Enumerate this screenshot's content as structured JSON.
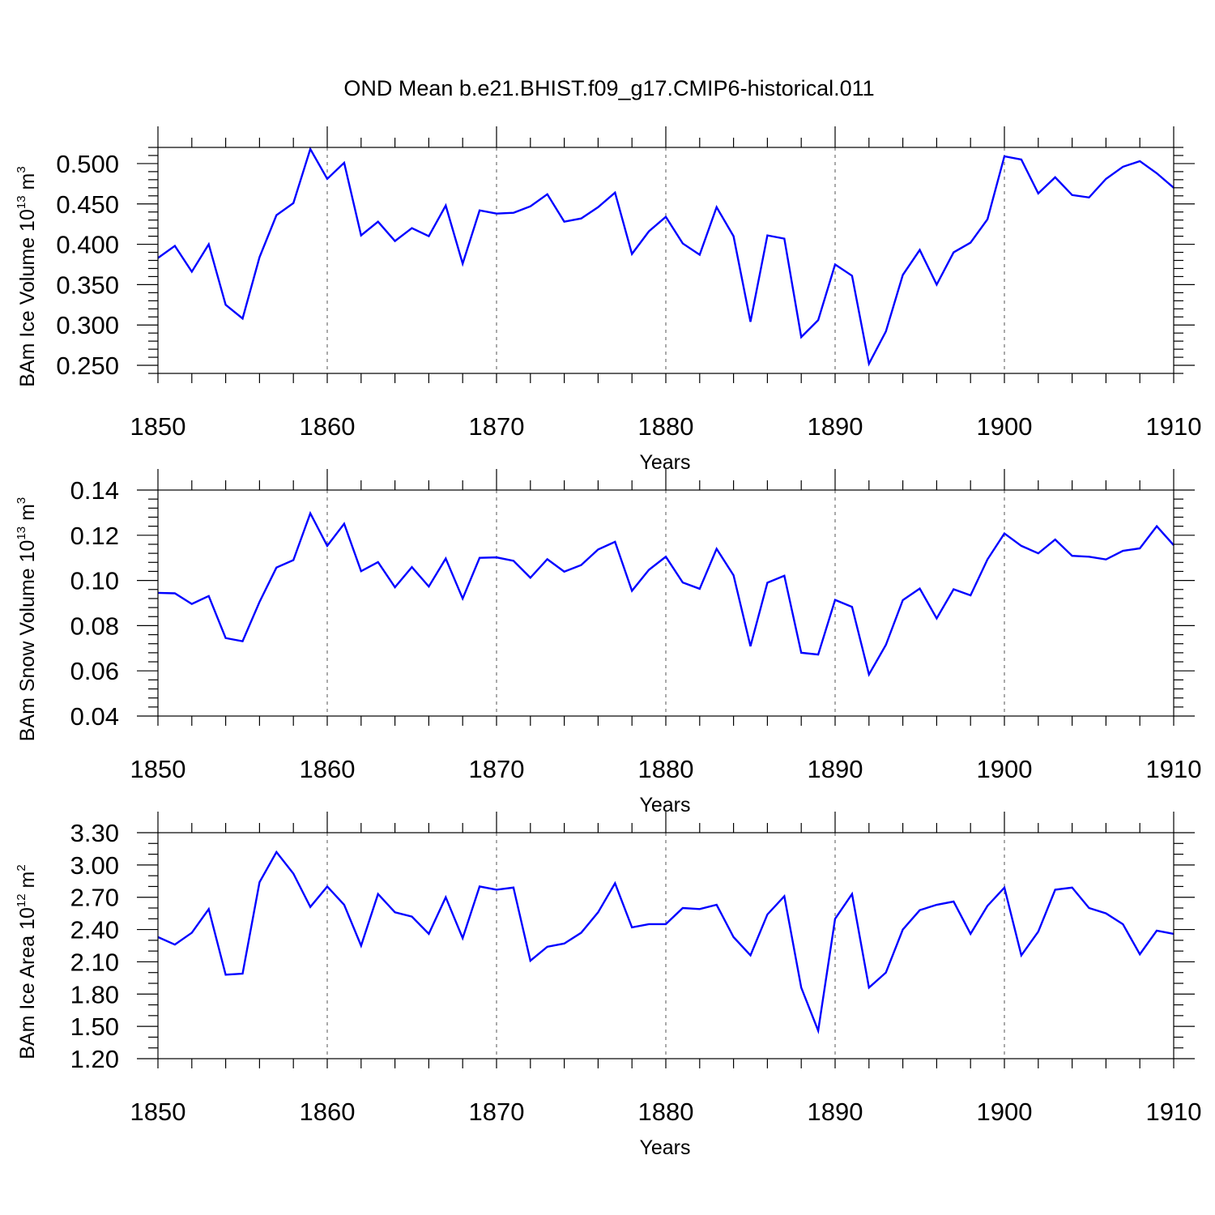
{
  "title": "OND Mean b.e21.BHIST.f09_g17.CMIP6-historical.011",
  "chart_data": [
    {
      "type": "line",
      "name": "ice-volume",
      "ylabel_base": "BAm Ice Volume 10",
      "ylabel_exp": "13",
      "ylabel_unit": " m",
      "ylabel_unit_exp": "3",
      "xlabel": "Years",
      "xlim": [
        1850,
        1910
      ],
      "ylim": [
        0.24,
        0.52
      ],
      "x_ticks": [
        "1850",
        "1860",
        "1870",
        "1880",
        "1890",
        "1900",
        "1910"
      ],
      "y_ticks": [
        "0.250",
        "0.300",
        "0.350",
        "0.400",
        "0.450",
        "0.500"
      ],
      "y_tick_values": [
        0.25,
        0.3,
        0.35,
        0.4,
        0.45,
        0.5
      ],
      "y_minor_step": 0.01,
      "color": "#0000ff",
      "x": [
        1850,
        1851,
        1852,
        1853,
        1854,
        1855,
        1856,
        1857,
        1858,
        1859,
        1860,
        1861,
        1862,
        1863,
        1864,
        1865,
        1866,
        1867,
        1868,
        1869,
        1870,
        1871,
        1872,
        1873,
        1874,
        1875,
        1876,
        1877,
        1878,
        1879,
        1880,
        1881,
        1882,
        1883,
        1884,
        1885,
        1886,
        1887,
        1888,
        1889,
        1890,
        1891,
        1892,
        1893,
        1894,
        1895,
        1896,
        1897,
        1898,
        1899,
        1900,
        1901,
        1902,
        1903,
        1904,
        1905,
        1906,
        1907,
        1908,
        1909,
        1910
      ],
      "values": [
        0.383,
        0.398,
        0.366,
        0.4,
        0.325,
        0.308,
        0.384,
        0.436,
        0.451,
        0.518,
        0.481,
        0.501,
        0.411,
        0.428,
        0.404,
        0.42,
        0.41,
        0.448,
        0.376,
        0.442,
        0.438,
        0.439,
        0.447,
        0.462,
        0.428,
        0.432,
        0.446,
        0.464,
        0.388,
        0.416,
        0.434,
        0.401,
        0.387,
        0.446,
        0.41,
        0.304,
        0.411,
        0.407,
        0.285,
        0.306,
        0.375,
        0.361,
        0.252,
        0.292,
        0.362,
        0.393,
        0.35,
        0.39,
        0.402,
        0.431,
        0.509,
        0.505,
        0.463,
        0.483,
        0.461,
        0.458,
        0.481,
        0.496,
        0.503,
        0.488,
        0.47
      ]
    },
    {
      "type": "line",
      "name": "snow-volume",
      "ylabel_base": "BAm Snow Volume 10",
      "ylabel_exp": "13",
      "ylabel_unit": " m",
      "ylabel_unit_exp": "3",
      "xlabel": "Years",
      "xlim": [
        1850,
        1910
      ],
      "ylim": [
        0.04,
        0.14
      ],
      "x_ticks": [
        "1850",
        "1860",
        "1870",
        "1880",
        "1890",
        "1900",
        "1910"
      ],
      "y_ticks": [
        "0.04",
        "0.06",
        "0.08",
        "0.10",
        "0.12",
        "0.14"
      ],
      "y_tick_values": [
        0.04,
        0.06,
        0.08,
        0.1,
        0.12,
        0.14
      ],
      "y_minor_step": 0.004,
      "color": "#0000ff",
      "x": [
        1850,
        1851,
        1852,
        1853,
        1854,
        1855,
        1856,
        1857,
        1858,
        1859,
        1860,
        1861,
        1862,
        1863,
        1864,
        1865,
        1866,
        1867,
        1868,
        1869,
        1870,
        1871,
        1872,
        1873,
        1874,
        1875,
        1876,
        1877,
        1878,
        1879,
        1880,
        1881,
        1882,
        1883,
        1884,
        1885,
        1886,
        1887,
        1888,
        1889,
        1890,
        1891,
        1892,
        1893,
        1894,
        1895,
        1896,
        1897,
        1898,
        1899,
        1900,
        1901,
        1902,
        1903,
        1904,
        1905,
        1906,
        1907,
        1908,
        1909,
        1910
      ],
      "values": [
        0.0945,
        0.0943,
        0.0896,
        0.0931,
        0.0745,
        0.0731,
        0.0905,
        0.1057,
        0.109,
        0.1297,
        0.1153,
        0.1251,
        0.1041,
        0.1081,
        0.097,
        0.1059,
        0.0973,
        0.1097,
        0.092,
        0.11,
        0.1102,
        0.1087,
        0.1012,
        0.1094,
        0.1039,
        0.1068,
        0.1137,
        0.1171,
        0.0954,
        0.1047,
        0.1105,
        0.0991,
        0.0963,
        0.114,
        0.1023,
        0.0709,
        0.099,
        0.1021,
        0.068,
        0.0672,
        0.0914,
        0.0883,
        0.0584,
        0.0715,
        0.0913,
        0.0964,
        0.0832,
        0.0961,
        0.0934,
        0.1093,
        0.1208,
        0.1153,
        0.112,
        0.1181,
        0.1109,
        0.1105,
        0.1093,
        0.1131,
        0.1142,
        0.124,
        0.1156
      ]
    },
    {
      "type": "line",
      "name": "ice-area",
      "ylabel_base": "BAm Ice Area 10",
      "ylabel_exp": "12",
      "ylabel_unit": " m",
      "ylabel_unit_exp": "2",
      "xlabel": "Years",
      "xlim": [
        1850,
        1910
      ],
      "ylim": [
        1.2,
        3.3
      ],
      "x_ticks": [
        "1850",
        "1860",
        "1870",
        "1880",
        "1890",
        "1900",
        "1910"
      ],
      "y_ticks": [
        "1.20",
        "1.50",
        "1.80",
        "2.10",
        "2.40",
        "2.70",
        "3.00",
        "3.30"
      ],
      "y_tick_values": [
        1.2,
        1.5,
        1.8,
        2.1,
        2.4,
        2.7,
        3.0,
        3.3
      ],
      "y_minor_step": 0.1,
      "color": "#0000ff",
      "x": [
        1850,
        1851,
        1852,
        1853,
        1854,
        1855,
        1856,
        1857,
        1858,
        1859,
        1860,
        1861,
        1862,
        1863,
        1864,
        1865,
        1866,
        1867,
        1868,
        1869,
        1870,
        1871,
        1872,
        1873,
        1874,
        1875,
        1876,
        1877,
        1878,
        1879,
        1880,
        1881,
        1882,
        1883,
        1884,
        1885,
        1886,
        1887,
        1888,
        1889,
        1890,
        1891,
        1892,
        1893,
        1894,
        1895,
        1896,
        1897,
        1898,
        1899,
        1900,
        1901,
        1902,
        1903,
        1904,
        1905,
        1906,
        1907,
        1908,
        1909,
        1910
      ],
      "values": [
        2.33,
        2.26,
        2.37,
        2.59,
        1.98,
        1.99,
        2.84,
        3.12,
        2.92,
        2.61,
        2.8,
        2.63,
        2.25,
        2.73,
        2.56,
        2.52,
        2.36,
        2.7,
        2.32,
        2.8,
        2.77,
        2.79,
        2.11,
        2.24,
        2.27,
        2.37,
        2.56,
        2.83,
        2.42,
        2.45,
        2.45,
        2.6,
        2.59,
        2.63,
        2.33,
        2.16,
        2.54,
        2.71,
        1.86,
        1.46,
        2.5,
        2.73,
        1.86,
        2.0,
        2.4,
        2.58,
        2.63,
        2.66,
        2.36,
        2.62,
        2.79,
        2.16,
        2.38,
        2.77,
        2.79,
        2.6,
        2.55,
        2.45,
        2.17,
        2.39,
        2.36
      ]
    }
  ]
}
